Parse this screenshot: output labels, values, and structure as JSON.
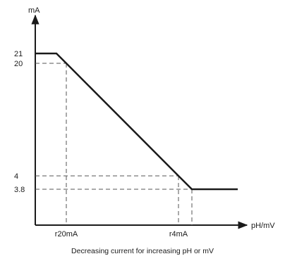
{
  "chart_data": {
    "type": "line",
    "ylabel": "mA",
    "xlabel": "pH/mV",
    "caption": "Decreasing current for increasing pH or mV",
    "y_ticks": [
      {
        "value": 21,
        "label": "21"
      },
      {
        "value": 20,
        "label": "20"
      },
      {
        "value": 4,
        "label": "4"
      },
      {
        "value": 3.8,
        "label": "3.8"
      }
    ],
    "x_ticks": [
      {
        "key": "r20",
        "label": "r20mA"
      },
      {
        "key": "r4",
        "label": "r4mA"
      }
    ],
    "series": [
      {
        "points": [
          {
            "x": "x_start",
            "y": 21
          },
          {
            "x": "x_knee1",
            "y": 21
          },
          {
            "x": "r20",
            "y": 20
          },
          {
            "x": "r4",
            "y": 4
          },
          {
            "x": "x_knee2",
            "y": 3.8
          },
          {
            "x": "x_end",
            "y": 3.8
          }
        ]
      }
    ],
    "reference_lines": [
      {
        "y": 20,
        "to_x": "r20"
      },
      {
        "y": 4,
        "to_x": "r4"
      },
      {
        "y": 3.8,
        "to_x": "x_knee2"
      }
    ],
    "grid": false,
    "colors": {
      "line": "#1a1a1a",
      "dash": "#555555"
    }
  }
}
